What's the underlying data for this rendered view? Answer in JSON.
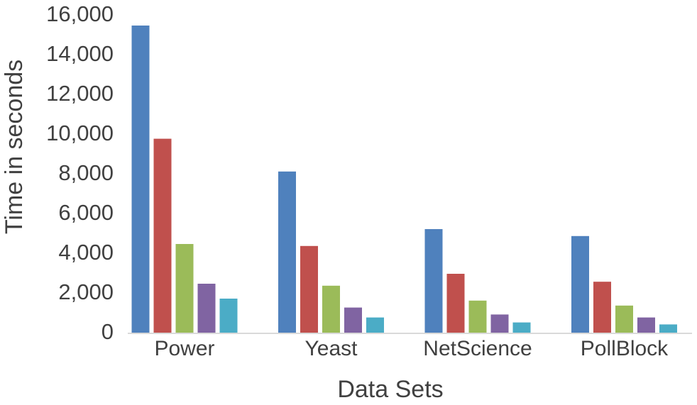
{
  "chart_data": {
    "type": "bar",
    "x_label": "Data Sets",
    "y_label": "Time in  seconds",
    "categories": [
      "Power",
      "Yeast",
      "NetScience",
      "PollBlock"
    ],
    "series": [
      {
        "color": "#4f81bd",
        "values": [
          15500,
          8150,
          5250,
          4900
        ]
      },
      {
        "color": "#c0504d",
        "values": [
          9800,
          4400,
          3000,
          2600
        ]
      },
      {
        "color": "#9bbb59",
        "values": [
          4500,
          2400,
          1650,
          1400
        ]
      },
      {
        "color": "#8064a2",
        "values": [
          2500,
          1300,
          950,
          800
        ]
      },
      {
        "color": "#4bacc6",
        "values": [
          1750,
          800,
          550,
          450
        ]
      }
    ],
    "ylim": [
      0,
      16000
    ],
    "yticks": [
      0,
      {
        "value": 2000,
        "label": "2,000"
      },
      {
        "value": 4000,
        "label": "4,000"
      },
      {
        "value": 6000,
        "label": "6,000"
      },
      {
        "value": 8000,
        "label": "8,000"
      },
      {
        "value": 10000,
        "label": "10,000"
      },
      {
        "value": 12000,
        "label": "12,000"
      },
      {
        "value": 14000,
        "label": "14,000"
      },
      {
        "value": 16000,
        "label": "16,000"
      }
    ],
    "grid": false
  }
}
